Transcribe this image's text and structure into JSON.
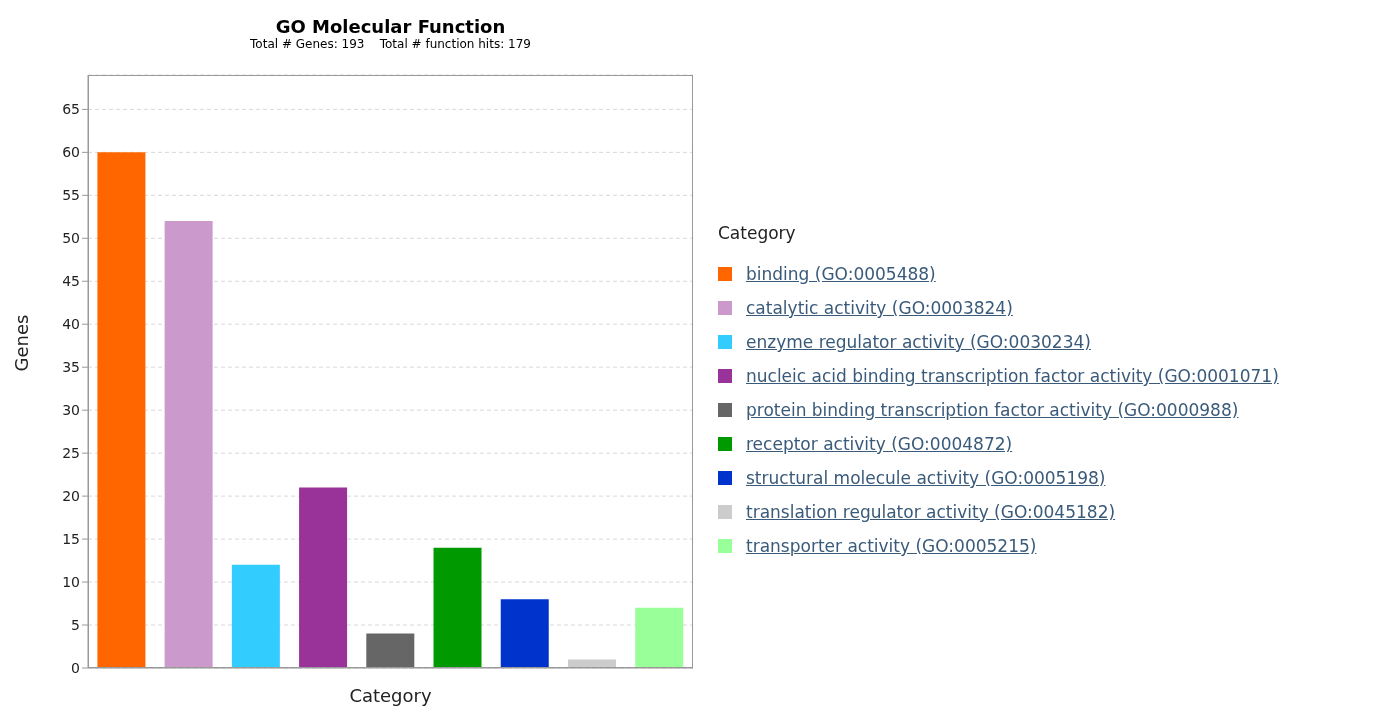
{
  "chart_data": {
    "type": "bar",
    "title": "GO Molecular Function",
    "subtitle": "Total # Genes: 193    Total # function hits: 179",
    "xlabel": "Category",
    "ylabel": "Genes",
    "legend_title": "Category",
    "categories": [
      null,
      null,
      null,
      null,
      null,
      null,
      null,
      null,
      null
    ],
    "stacked": true,
    "series": [
      {
        "name": "binding (GO:0005488)",
        "color": "#ff6600",
        "values": [
          60,
          null,
          null,
          null,
          null,
          null,
          null,
          null,
          null
        ]
      },
      {
        "name": "catalytic activity (GO:0003824)",
        "color": "#cc99cc",
        "values": [
          null,
          52,
          null,
          null,
          null,
          null,
          null,
          null,
          null
        ]
      },
      {
        "name": "enzyme regulator activity (GO:0030234)",
        "color": "#33ccff",
        "values": [
          null,
          null,
          12,
          null,
          null,
          null,
          null,
          null,
          null
        ]
      },
      {
        "name": "nucleic acid binding transcription factor activity (GO:0001071)",
        "color": "#993399",
        "values": [
          null,
          null,
          null,
          21,
          null,
          null,
          null,
          null,
          null
        ]
      },
      {
        "name": "protein binding transcription factor activity (GO:0000988)",
        "color": "#666666",
        "values": [
          null,
          null,
          null,
          null,
          4,
          null,
          null,
          null,
          null
        ]
      },
      {
        "name": "receptor activity (GO:0004872)",
        "color": "#009900",
        "values": [
          null,
          null,
          null,
          null,
          null,
          14,
          null,
          null,
          null
        ]
      },
      {
        "name": "structural molecule activity (GO:0005198)",
        "color": "#0033cc",
        "values": [
          null,
          null,
          null,
          null,
          null,
          null,
          8,
          null,
          null
        ]
      },
      {
        "name": "translation regulator activity (GO:0045182)",
        "color": "#cccccc",
        "values": [
          null,
          null,
          null,
          null,
          null,
          null,
          null,
          1,
          null
        ]
      },
      {
        "name": "transporter activity (GO:0005215)",
        "color": "#99ff99",
        "values": [
          null,
          null,
          null,
          null,
          null,
          null,
          null,
          null,
          7
        ]
      }
    ],
    "ylim": [
      0,
      69
    ],
    "yticks": [
      0,
      5,
      10,
      15,
      20,
      25,
      30,
      35,
      40,
      45,
      50,
      55,
      60,
      65
    ],
    "grid": "y",
    "legend": "right",
    "tick_labels": "y"
  }
}
